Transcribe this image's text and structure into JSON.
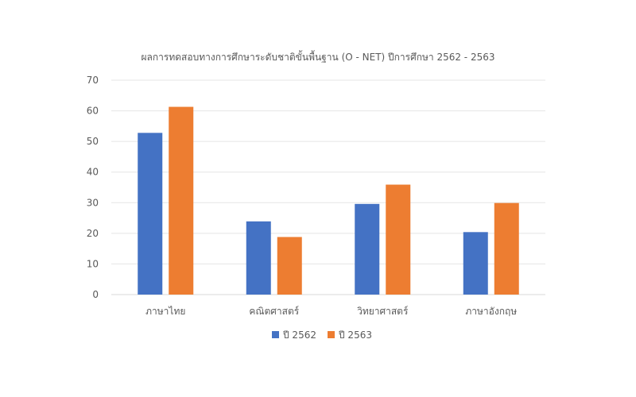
{
  "chart_data": {
    "type": "bar",
    "title": "ผลการทดสอบทางการศึกษาระดับชาติขั้นพื้นฐาน (O - NET) ปีการศึกษา 2562 - 2563",
    "categories": [
      "ภาษาไทย",
      "คณิตศาสตร์",
      "วิทยาศาสตร์",
      "ภาษาอังกฤษ"
    ],
    "series": [
      {
        "name": "ปี 2562",
        "values": [
          52.8,
          23.9,
          29.6,
          20.4
        ],
        "color": "#4472C4"
      },
      {
        "name": "ปี 2563",
        "values": [
          61.3,
          18.8,
          35.9,
          29.9
        ],
        "color": "#ED7D31"
      }
    ],
    "ylim": [
      0,
      70
    ],
    "yticks": [
      "0",
      "10",
      "20",
      "30",
      "40",
      "50",
      "60",
      "70"
    ],
    "grid": true,
    "legend": "bottom"
  }
}
